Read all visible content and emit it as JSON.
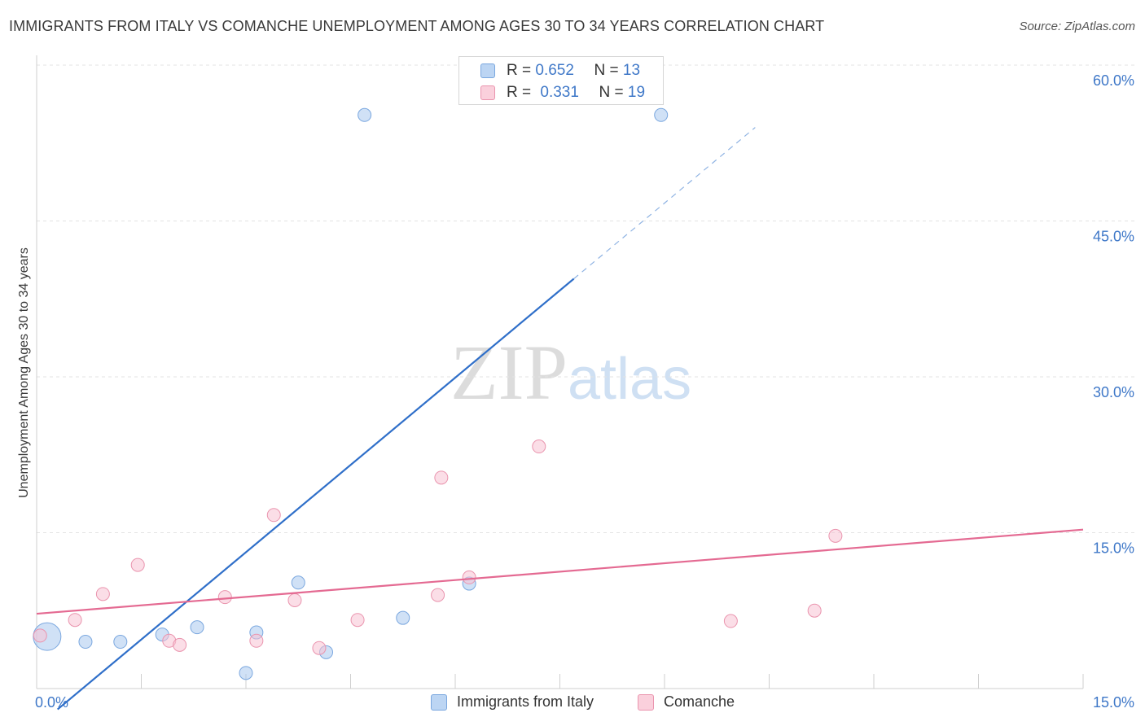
{
  "chart_data": {
    "type": "scatter",
    "title": "IMMIGRANTS FROM ITALY VS COMANCHE UNEMPLOYMENT AMONG AGES 30 TO 34 YEARS CORRELATION CHART",
    "source": "Source: ZipAtlas.com",
    "ylabel": "Unemployment Among Ages 30 to 34 years",
    "xlabel": "",
    "xlim": [
      0,
      15
    ],
    "ylim": [
      0,
      60
    ],
    "x_tick_labels": [
      "0.0%",
      "15.0%"
    ],
    "y_tick_values": [
      15,
      30,
      45,
      60
    ],
    "y_tick_labels": [
      "15.0%",
      "30.0%",
      "45.0%",
      "60.0%"
    ],
    "watermark": "ZIPatlas",
    "legend": [
      {
        "r_label": "R =",
        "r": "0.652",
        "n_label": "N =",
        "n": "13"
      },
      {
        "r_label": "R =",
        "r": "0.331",
        "n_label": "N =",
        "n": "19"
      }
    ],
    "series": [
      {
        "name": "Immigrants from Italy",
        "color": "#a9c8ef",
        "stroke": "#7aa7df",
        "line_color": "#2f6fc9",
        "trend": {
          "x0": 0.3,
          "y0": -2.0,
          "x1": 10.3,
          "y1": 54.0,
          "solid_to_x": 7.7
        },
        "points": [
          {
            "x": 0.15,
            "y": 5.0,
            "big": true
          },
          {
            "x": 0.7,
            "y": 4.5
          },
          {
            "x": 1.2,
            "y": 4.5
          },
          {
            "x": 1.8,
            "y": 5.2
          },
          {
            "x": 2.3,
            "y": 5.9
          },
          {
            "x": 3.0,
            "y": 1.5
          },
          {
            "x": 3.15,
            "y": 5.4
          },
          {
            "x": 3.75,
            "y": 10.2
          },
          {
            "x": 4.15,
            "y": 3.5
          },
          {
            "x": 4.7,
            "y": 55.2
          },
          {
            "x": 5.25,
            "y": 6.8
          },
          {
            "x": 6.2,
            "y": 10.1
          },
          {
            "x": 8.95,
            "y": 55.2
          }
        ]
      },
      {
        "name": "Comanche",
        "color": "#f8c3d3",
        "stroke": "#ea94ae",
        "line_color": "#e46a92",
        "trend": {
          "x0": 0.0,
          "y0": 7.2,
          "x1": 15.0,
          "y1": 15.3
        },
        "points": [
          {
            "x": 0.05,
            "y": 5.1
          },
          {
            "x": 0.55,
            "y": 6.6
          },
          {
            "x": 0.95,
            "y": 9.1
          },
          {
            "x": 1.45,
            "y": 11.9
          },
          {
            "x": 1.9,
            "y": 4.6
          },
          {
            "x": 2.05,
            "y": 4.2
          },
          {
            "x": 2.7,
            "y": 8.8
          },
          {
            "x": 3.15,
            "y": 4.6
          },
          {
            "x": 3.4,
            "y": 16.7
          },
          {
            "x": 3.7,
            "y": 8.5
          },
          {
            "x": 4.05,
            "y": 3.9
          },
          {
            "x": 4.6,
            "y": 6.6
          },
          {
            "x": 5.75,
            "y": 9.0
          },
          {
            "x": 5.8,
            "y": 20.3
          },
          {
            "x": 6.2,
            "y": 10.7
          },
          {
            "x": 7.2,
            "y": 23.3
          },
          {
            "x": 9.95,
            "y": 6.5
          },
          {
            "x": 11.15,
            "y": 7.5
          },
          {
            "x": 11.45,
            "y": 14.7
          }
        ]
      }
    ]
  }
}
